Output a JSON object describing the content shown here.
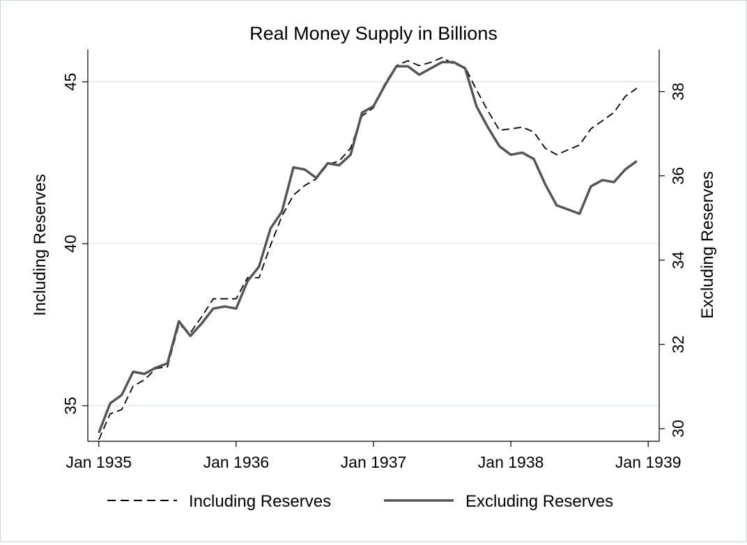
{
  "chart_data": {
    "type": "line",
    "title": "Real Money Supply in Billions",
    "xlabel": "",
    "ylabel_left": "Including Reserves",
    "ylabel_right": "Excluding Reserves",
    "x_ticks": [
      {
        "label": "Jan 1935",
        "value": 1935.0
      },
      {
        "label": "Jan 1936",
        "value": 1936.0
      },
      {
        "label": "Jan 1937",
        "value": 1937.0
      },
      {
        "label": "Jan 1938",
        "value": 1938.0
      },
      {
        "label": "Jan 1939",
        "value": 1939.0
      }
    ],
    "y_left_ticks": [
      35,
      40,
      45
    ],
    "y_right_ticks": [
      30,
      32,
      34,
      36,
      38
    ],
    "ylim_left": [
      33.9,
      46.0
    ],
    "ylim_right": [
      29.7,
      39.0
    ],
    "xlim": [
      1934.92,
      1939.08
    ],
    "grid": "horizontal-left-axis",
    "legend_position": "bottom",
    "series": [
      {
        "name": "Including Reserves",
        "axis": "left",
        "style": "dashed",
        "color": "#000000",
        "x": [
          1935.0,
          1935.083,
          1935.167,
          1935.25,
          1935.333,
          1935.417,
          1935.5,
          1935.583,
          1935.667,
          1935.75,
          1935.833,
          1935.917,
          1936.0,
          1936.083,
          1936.167,
          1936.25,
          1936.333,
          1936.417,
          1936.5,
          1936.583,
          1936.667,
          1936.75,
          1936.833,
          1936.917,
          1937.0,
          1937.083,
          1937.167,
          1937.25,
          1937.333,
          1937.417,
          1937.5,
          1937.583,
          1937.667,
          1937.75,
          1937.833,
          1937.917,
          1938.0,
          1938.083,
          1938.167,
          1938.25,
          1938.333,
          1938.417,
          1938.5,
          1938.583,
          1938.667,
          1938.75,
          1938.833,
          1938.917
        ],
        "values": [
          33.95,
          34.75,
          34.88,
          35.6,
          35.8,
          36.15,
          36.2,
          37.5,
          37.25,
          37.75,
          38.3,
          38.3,
          38.3,
          38.95,
          38.95,
          39.95,
          40.85,
          41.5,
          41.8,
          42.0,
          42.45,
          42.55,
          42.95,
          43.95,
          44.2,
          44.95,
          45.5,
          45.65,
          45.5,
          45.6,
          45.75,
          45.55,
          45.45,
          44.75,
          44.1,
          43.5,
          43.55,
          43.6,
          43.45,
          42.95,
          42.75,
          42.9,
          43.05,
          43.55,
          43.8,
          44.05,
          44.55,
          44.8
        ]
      },
      {
        "name": "Excluding Reserves",
        "axis": "right",
        "style": "solid",
        "color": "#555555",
        "x": [
          1935.0,
          1935.083,
          1935.167,
          1935.25,
          1935.333,
          1935.417,
          1935.5,
          1935.583,
          1935.667,
          1935.75,
          1935.833,
          1935.917,
          1936.0,
          1936.083,
          1936.167,
          1936.25,
          1936.333,
          1936.417,
          1936.5,
          1936.583,
          1936.667,
          1936.75,
          1936.833,
          1936.917,
          1937.0,
          1937.083,
          1937.167,
          1937.25,
          1937.333,
          1937.417,
          1937.5,
          1937.583,
          1937.667,
          1937.75,
          1937.833,
          1937.917,
          1938.0,
          1938.083,
          1938.167,
          1938.25,
          1938.333,
          1938.417,
          1938.5,
          1938.583,
          1938.667,
          1938.75,
          1938.833,
          1938.917
        ],
        "values": [
          29.9,
          30.6,
          30.8,
          31.35,
          31.3,
          31.45,
          31.55,
          32.55,
          32.2,
          32.5,
          32.85,
          32.9,
          32.85,
          33.5,
          33.85,
          34.75,
          35.15,
          36.2,
          36.15,
          35.95,
          36.3,
          36.25,
          36.5,
          37.5,
          37.65,
          38.15,
          38.6,
          38.6,
          38.4,
          38.55,
          38.7,
          38.7,
          38.55,
          37.65,
          37.15,
          36.7,
          36.5,
          36.55,
          36.4,
          35.8,
          35.3,
          35.2,
          35.1,
          35.75,
          35.9,
          35.85,
          36.15,
          36.35
        ]
      }
    ]
  }
}
